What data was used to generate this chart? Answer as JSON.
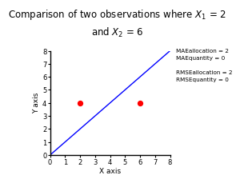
{
  "title_line1": "Comparison of two observations where $X_1$ = 2",
  "title_line2": "and $X_2$ = 6",
  "xlabel": "X axis",
  "ylabel": "Y axis",
  "xlim": [
    0,
    8
  ],
  "ylim": [
    0,
    8
  ],
  "xticks": [
    0,
    1,
    2,
    3,
    4,
    5,
    6,
    7,
    8
  ],
  "yticks": [
    0,
    1,
    2,
    3,
    4,
    5,
    6,
    7,
    8
  ],
  "diagonal_color": "blue",
  "points": [
    [
      2,
      4
    ],
    [
      6,
      4
    ]
  ],
  "point_color": "red",
  "point_size": 18,
  "ann_line1": "MAEallocation = 2",
  "ann_line2": "MAEquantity = 0",
  "ann_line3": "RMSEallocation = 2",
  "ann_line4": "RMSEquantity = 0",
  "bg_color": "#ffffff",
  "title_fontsize": 8.5,
  "axis_label_fontsize": 6.5,
  "tick_fontsize": 6,
  "annotation_fontsize": 5.2,
  "fig_width": 3.0,
  "fig_height": 2.25,
  "dpi": 100
}
